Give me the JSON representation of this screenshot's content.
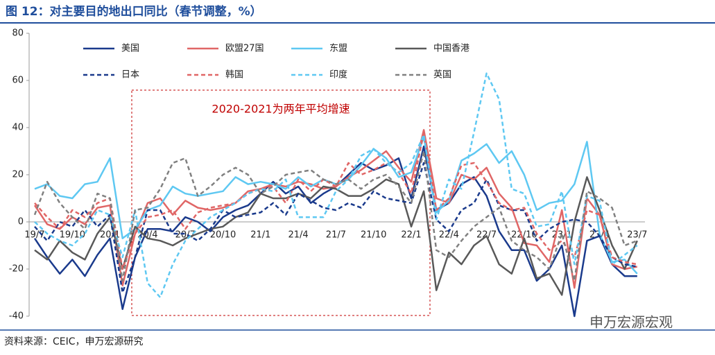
{
  "chart_data": {
    "type": "line",
    "title": "图 12：对主要目的地出口同比（春节调整，%）",
    "annotation": "2020-2021为两年平均增速",
    "source": "资料来源：CEIC，申万宏源研究",
    "watermark": "申万宏源宏观",
    "categories": [
      "19/7",
      null,
      null,
      "19/10",
      null,
      null,
      "20/1",
      null,
      null,
      "20/4",
      null,
      null,
      "20/7",
      null,
      null,
      "20/10",
      null,
      null,
      "21/1",
      null,
      null,
      "21/4",
      null,
      null,
      "21/7",
      null,
      null,
      "21/10",
      null,
      null,
      "22/1",
      null,
      null,
      "22/4",
      null,
      null,
      "22/7",
      null,
      null,
      "22/10",
      null,
      null,
      "23/1",
      null,
      null,
      "23/4",
      null,
      null,
      "23/7"
    ],
    "ylim": [
      -40,
      80
    ],
    "yticks": [
      -40,
      -20,
      0,
      20,
      40,
      60,
      80
    ],
    "grid": false,
    "series": [
      {
        "name": "美国",
        "color": "#1a3a8c",
        "dashed": false,
        "values": [
          -7,
          -15,
          -22,
          -16,
          -23,
          -14,
          -7,
          -37,
          -15,
          -3,
          -3,
          -4,
          2,
          0,
          -4,
          2,
          5,
          7,
          12,
          17,
          12,
          15,
          8,
          12,
          15,
          20,
          25,
          22,
          24,
          27,
          10,
          32,
          5,
          8,
          16,
          19,
          11,
          -4,
          -12,
          -12,
          -25,
          -20,
          -10,
          -40,
          -8,
          -6,
          -18,
          -23,
          -23
        ]
      },
      {
        "name": "欧盟27国",
        "color": "#e06666",
        "dashed": false,
        "values": [
          7,
          -1,
          -3,
          2,
          -1,
          6,
          7,
          -27,
          -5,
          8,
          10,
          3,
          9,
          6,
          5,
          6,
          8,
          13,
          14,
          16,
          15,
          17,
          16,
          14,
          15,
          19,
          22,
          26,
          30,
          23,
          17,
          39,
          10,
          8,
          20,
          18,
          23,
          12,
          6,
          -9,
          -10,
          -17,
          5,
          -28,
          10,
          3,
          -18,
          -20,
          -19
        ]
      },
      {
        "name": "东盟",
        "color": "#5ec8f2",
        "dashed": false,
        "values": [
          14,
          16,
          11,
          10,
          16,
          17,
          27,
          -7,
          -3,
          5,
          7,
          15,
          12,
          11,
          12,
          13,
          19,
          16,
          17,
          16,
          14,
          19,
          15,
          18,
          16,
          18,
          24,
          31,
          27,
          19,
          21,
          36,
          4,
          9,
          26,
          29,
          33,
          25,
          30,
          20,
          5,
          8,
          9,
          16,
          34,
          -5,
          -17,
          -16,
          -22
        ]
      },
      {
        "name": "中国香港",
        "color": "#595959",
        "dashed": false,
        "values": [
          -12,
          -16,
          -8,
          -13,
          -16,
          -5,
          2,
          -20,
          -2,
          -7,
          -8,
          -10,
          -7,
          -5,
          -3,
          -2,
          2,
          4,
          12,
          10,
          10,
          12,
          10,
          15,
          14,
          11,
          11,
          14,
          18,
          16,
          -2,
          13,
          -29,
          -13,
          -18,
          -10,
          -6,
          -18,
          -22,
          -7,
          -24,
          -22,
          -31,
          0,
          19,
          5,
          -10,
          -20,
          -8
        ]
      },
      {
        "name": "日本",
        "color": "#1a3a8c",
        "dashed": true,
        "values": [
          -2,
          -8,
          0,
          -2,
          5,
          -2,
          3,
          -30,
          -15,
          5,
          5,
          -5,
          -5,
          -8,
          -3,
          5,
          2,
          3,
          4,
          8,
          3,
          12,
          9,
          6,
          5,
          8,
          6,
          13,
          10,
          9,
          8,
          25,
          1,
          -4,
          5,
          8,
          18,
          7,
          5,
          5,
          -8,
          -3,
          0,
          1,
          0,
          -6,
          -15,
          -18,
          -19
        ]
      },
      {
        "name": "韩国",
        "color": "#e06666",
        "dashed": true,
        "values": [
          8,
          2,
          -3,
          5,
          2,
          8,
          10,
          -20,
          -5,
          2,
          3,
          5,
          -3,
          4,
          6,
          7,
          8,
          12,
          14,
          15,
          8,
          18,
          13,
          18,
          15,
          25,
          20,
          22,
          25,
          21,
          12,
          38,
          5,
          10,
          24,
          25,
          17,
          8,
          5,
          6,
          -5,
          -12,
          -8,
          -15,
          5,
          3,
          -15,
          -17,
          -18
        ]
      },
      {
        "name": "印度",
        "color": "#5ec8f2",
        "dashed": true,
        "values": [
          0,
          -5,
          -8,
          -10,
          -5,
          5,
          3,
          -15,
          5,
          -26,
          -32,
          -18,
          -8,
          -3,
          2,
          5,
          8,
          12,
          14,
          13,
          18,
          2,
          2,
          2,
          13,
          18,
          28,
          31,
          25,
          21,
          25,
          37,
          1,
          18,
          14,
          38,
          63,
          52,
          14,
          12,
          -2,
          -1,
          13,
          -18,
          11,
          9,
          -18,
          -14,
          -10
        ]
      },
      {
        "name": "英国",
        "color": "#808080",
        "dashed": true,
        "values": [
          3,
          17,
          8,
          2,
          -3,
          12,
          10,
          -25,
          5,
          6,
          14,
          25,
          27,
          11,
          15,
          20,
          23,
          20,
          12,
          15,
          20,
          21,
          22,
          18,
          16,
          18,
          14,
          18,
          20,
          15,
          8,
          30,
          -12,
          -15,
          -8,
          -2,
          2,
          6,
          -8,
          -12,
          -15,
          -20,
          -5,
          -25,
          13,
          10,
          6,
          -10,
          -8
        ]
      }
    ]
  }
}
